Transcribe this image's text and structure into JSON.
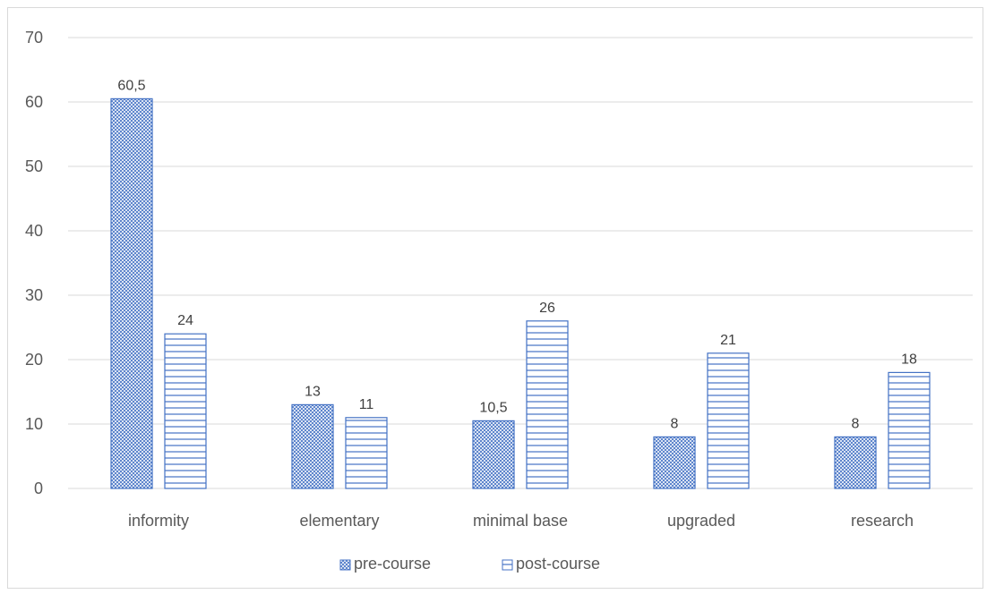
{
  "chart_data": {
    "type": "bar",
    "categories": [
      "informity",
      "elementary",
      "minimal base",
      "upgraded",
      "research"
    ],
    "series": [
      {
        "name": "pre-course",
        "values": [
          60.5,
          13,
          10.5,
          8,
          8
        ],
        "labels": [
          "60,5",
          "13",
          "10,5",
          "8",
          "8"
        ],
        "pattern": "dense-crosshatch",
        "color": "#4472c4"
      },
      {
        "name": "post-course",
        "values": [
          24,
          11,
          26,
          21,
          18
        ],
        "labels": [
          "24",
          "11",
          "26",
          "21",
          "18"
        ],
        "pattern": "horizontal-lines",
        "color": "#4472c4"
      }
    ],
    "yticks": [
      "0",
      "10",
      "20",
      "30",
      "40",
      "50",
      "60",
      "70"
    ],
    "ylim": [
      0,
      70
    ],
    "grid": true,
    "legend_position": "bottom",
    "title": "",
    "xlabel": "",
    "ylabel": ""
  }
}
